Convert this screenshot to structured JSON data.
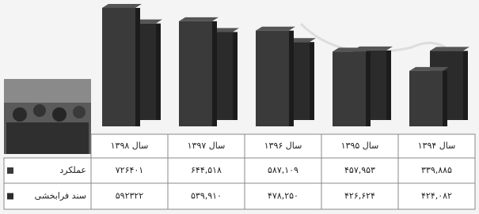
{
  "chart_data": {
    "type": "bar",
    "categories": [
      "سال ۱۳۹۴",
      "سال ۱۳۹۵",
      "سال ۱۳۹۶",
      "سال ۱۳۹۷",
      "سال ۱۳۹۸"
    ],
    "series": [
      {
        "name": "عملکرد",
        "color": "#3a3a3a",
        "values": [
          339885,
          457953,
          587109,
          644518,
          726401
        ],
        "value_labels": [
          "۳۳۹,۸۸۵",
          "۴۵۷,۹۵۳",
          "۵۸۷,۱۰۹",
          "۶۴۴,۵۱۸",
          "۷۲۶۴۰۱"
        ]
      },
      {
        "name": "سند فرابخشی",
        "color": "#2b2b2b",
        "values": [
          424082,
          426624,
          478250,
          539910,
          592322
        ],
        "value_labels": [
          "۴۲۴,۰۸۲",
          "۴۲۶,۶۲۴",
          "۴۷۸,۲۵۰",
          "۵۳۹,۹۱۰",
          "۵۹۲۳۲۲"
        ]
      }
    ]
  }
}
